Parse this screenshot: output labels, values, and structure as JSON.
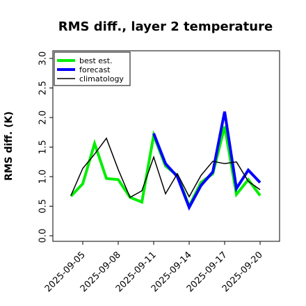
{
  "chart_data": {
    "type": "line",
    "title": "RMS diff., layer 2 temperature",
    "xlabel": "",
    "ylabel": "RMS diff. (K)",
    "ylim": [
      0,
      3.2
    ],
    "yticks": [
      "0.0",
      "0.5",
      "1.0",
      "1.5",
      "2.0",
      "2.5",
      "3.0"
    ],
    "xticks": [
      "2025-09-05",
      "2025-09-08",
      "2025-09-11",
      "2025-09-14",
      "2025-09-17",
      "2025-09-20"
    ],
    "highlight_tick": "2025-09-11",
    "highlight_color": "#228B22",
    "legend_position": "upper-left",
    "grid": false,
    "x": [
      "2025-09-04",
      "2025-09-05",
      "2025-09-06",
      "2025-09-07",
      "2025-09-08",
      "2025-09-09",
      "2025-09-10",
      "2025-09-11",
      "2025-09-12",
      "2025-09-13",
      "2025-09-14",
      "2025-09-15",
      "2025-09-16",
      "2025-09-17",
      "2025-09-18",
      "2025-09-19",
      "2025-09-20"
    ],
    "series": [
      {
        "name": "best est.",
        "color": "#00ee00",
        "values": [
          0.67,
          0.88,
          1.56,
          0.97,
          0.95,
          0.65,
          0.57,
          1.7,
          1.18,
          1.02,
          0.5,
          0.9,
          1.05,
          1.85,
          0.7,
          0.95,
          0.68
        ]
      },
      {
        "name": "forecast",
        "color": "#0000ff",
        "values": [
          null,
          null,
          null,
          null,
          null,
          null,
          null,
          1.73,
          1.22,
          1.0,
          0.48,
          0.85,
          1.08,
          2.1,
          0.8,
          1.11,
          0.9
        ]
      },
      {
        "name": "climatology",
        "color": "#000000",
        "values": [
          0.68,
          1.14,
          1.38,
          1.65,
          1.12,
          0.65,
          0.76,
          1.33,
          0.71,
          1.05,
          0.66,
          1.02,
          1.26,
          1.22,
          1.25,
          0.92,
          0.78
        ]
      }
    ]
  }
}
